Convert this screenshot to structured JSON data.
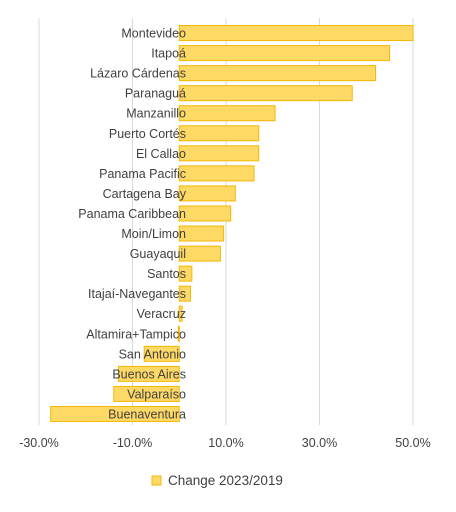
{
  "chart_data": {
    "type": "bar",
    "orientation": "horizontal",
    "categories": [
      "Montevideo",
      "Itapoá",
      "Lázaro Cárdenas",
      "Paranaguá",
      "Manzanillo",
      "Puerto Cortés",
      "El Callao",
      "Panama Pacific",
      "Cartagena Bay",
      "Panama Caribbean",
      "Moin/Limon",
      "Guayaquil",
      "Santos",
      "Itajaí-Navegantes",
      "Veracruz",
      "Altamira+Tampico",
      "San Antonio",
      "Buenos Aires",
      "Valparaíso",
      "Buenaventura"
    ],
    "series": [
      {
        "name": "Change 2023/2019",
        "values": [
          0.5,
          0.45,
          0.42,
          0.37,
          0.205,
          0.17,
          0.17,
          0.16,
          0.12,
          0.11,
          0.095,
          0.088,
          0.027,
          0.024,
          0.006,
          -0.002,
          -0.075,
          -0.13,
          -0.14,
          -0.275
        ]
      }
    ],
    "xlim": [
      -0.3,
      0.5
    ],
    "xticks": [
      "-30.0%",
      "-10.0%",
      "10.0%",
      "30.0%",
      "50.0%"
    ],
    "xtick_values": [
      -0.3,
      -0.1,
      0.1,
      0.3,
      0.5
    ],
    "grid": "vertical",
    "legend_position": "bottom",
    "colors": {
      "bar_fill": "#FFD966",
      "bar_border": "#F2B705",
      "grid": "#D9D9D9",
      "text": "#404040"
    }
  }
}
